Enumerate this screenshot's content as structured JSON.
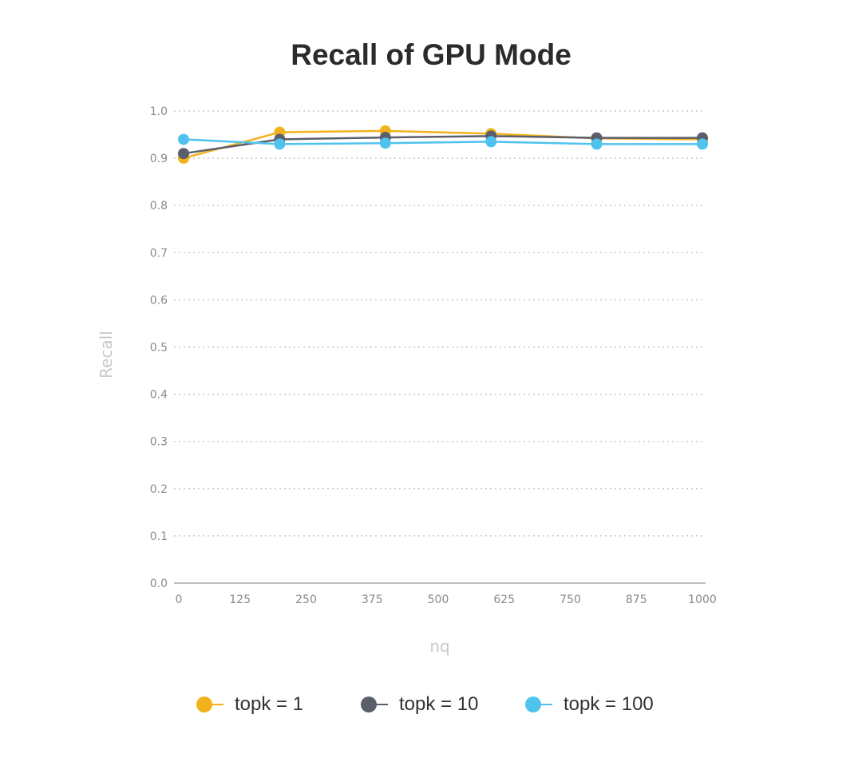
{
  "chart_data": {
    "type": "line",
    "title": "Recall of GPU Mode",
    "xlabel": "nq",
    "ylabel": "Recall",
    "xlim": [
      0,
      1000
    ],
    "ylim": [
      0,
      1.0
    ],
    "x_ticks": [
      "0",
      "125",
      "250",
      "375",
      "500",
      "625",
      "750",
      "875",
      "1000"
    ],
    "y_ticks": [
      "0.0",
      "0.1",
      "0.2",
      "0.3",
      "0.4",
      "0.5",
      "0.6",
      "0.7",
      "0.8",
      "0.9",
      "1.0"
    ],
    "x": [
      10,
      200,
      400,
      600,
      800,
      1000
    ],
    "grid": true,
    "legend_position": "bottom",
    "series": [
      {
        "name": "topk = 1",
        "color": "#F2B21C",
        "values": [
          0.9,
          0.955,
          0.958,
          0.952,
          0.942,
          0.94
        ]
      },
      {
        "name": "topk = 10",
        "color": "#5B5E6B",
        "values": [
          0.91,
          0.94,
          0.944,
          0.947,
          0.943,
          0.943
        ]
      },
      {
        "name": "topk = 100",
        "color": "#4FC3EE",
        "values": [
          0.94,
          0.93,
          0.932,
          0.935,
          0.93,
          0.93
        ]
      }
    ]
  }
}
